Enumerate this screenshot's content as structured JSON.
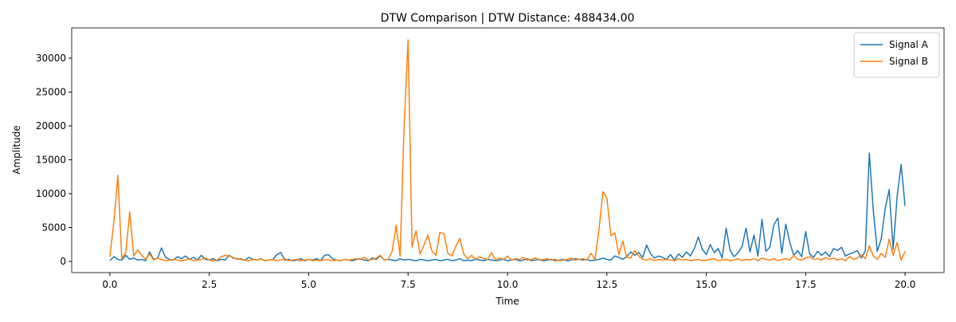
{
  "chart_data": {
    "type": "line",
    "title": "DTW Comparison | DTW Distance: 488434.00",
    "x_label": "Time",
    "y_label": "Amplitude",
    "x": [
      0,
      0.1,
      0.2,
      0.3,
      0.4,
      0.5,
      0.6,
      0.7,
      0.8,
      0.9,
      1,
      1.1,
      1.2,
      1.3,
      1.4,
      1.5,
      1.6,
      1.7,
      1.8,
      1.9,
      2,
      2.1,
      2.2,
      2.3,
      2.4,
      2.5,
      2.6,
      2.7,
      2.8,
      2.9,
      3,
      3.1,
      3.2,
      3.3,
      3.4,
      3.5,
      3.6,
      3.7,
      3.8,
      3.9,
      4,
      4.1,
      4.2,
      4.3,
      4.4,
      4.5,
      4.6,
      4.7,
      4.8,
      4.9,
      5,
      5.1,
      5.2,
      5.3,
      5.4,
      5.5,
      5.6,
      5.7,
      5.8,
      5.9,
      6,
      6.1,
      6.2,
      6.3,
      6.4,
      6.5,
      6.6,
      6.7,
      6.8,
      6.9,
      7,
      7.1,
      7.2,
      7.3,
      7.4,
      7.5,
      7.6,
      7.7,
      7.8,
      7.9,
      8,
      8.1,
      8.2,
      8.3,
      8.4,
      8.5,
      8.6,
      8.7,
      8.8,
      8.9,
      9,
      9.1,
      9.2,
      9.3,
      9.4,
      9.5,
      9.6,
      9.7,
      9.8,
      9.9,
      10,
      10.1,
      10.2,
      10.3,
      10.4,
      10.5,
      10.6,
      10.7,
      10.8,
      10.9,
      11,
      11.1,
      11.2,
      11.3,
      11.4,
      11.5,
      11.6,
      11.7,
      11.8,
      11.9,
      12,
      12.1,
      12.2,
      12.3,
      12.4,
      12.5,
      12.6,
      12.7,
      12.8,
      12.9,
      13,
      13.1,
      13.2,
      13.3,
      13.4,
      13.5,
      13.6,
      13.7,
      13.8,
      13.9,
      14,
      14.1,
      14.2,
      14.3,
      14.4,
      14.5,
      14.6,
      14.7,
      14.8,
      14.9,
      15,
      15.1,
      15.2,
      15.3,
      15.4,
      15.5,
      15.6,
      15.7,
      15.8,
      15.9,
      16,
      16.1,
      16.2,
      16.3,
      16.4,
      16.5,
      16.6,
      16.7,
      16.8,
      16.9,
      17,
      17.1,
      17.2,
      17.3,
      17.4,
      17.5,
      17.6,
      17.7,
      17.8,
      17.9,
      18,
      18.1,
      18.2,
      18.3,
      18.4,
      18.5,
      18.6,
      18.7,
      18.8,
      18.9,
      19,
      19.1,
      19.2,
      19.3,
      19.4,
      19.5,
      19.6,
      19.7,
      19.8,
      19.9,
      20
    ],
    "series": [
      {
        "name": "Signal A",
        "color": "#1f77b4",
        "values": [
          100,
          700,
          300,
          200,
          900,
          300,
          500,
          200,
          300,
          100,
          1400,
          300,
          500,
          2000,
          600,
          300,
          200,
          700,
          400,
          800,
          300,
          600,
          200,
          900,
          300,
          200,
          400,
          100,
          300,
          200,
          900,
          500,
          400,
          300,
          200,
          600,
          300,
          200,
          400,
          100,
          200,
          300,
          1000,
          1300,
          200,
          300,
          100,
          200,
          400,
          100,
          300,
          200,
          400,
          100,
          900,
          1000,
          400,
          200,
          100,
          300,
          200,
          100,
          300,
          400,
          200,
          100,
          500,
          300,
          800,
          200,
          300,
          200,
          100,
          400,
          200,
          300,
          200,
          100,
          300,
          200,
          100,
          200,
          300,
          100,
          200,
          300,
          100,
          200,
          400,
          100,
          200,
          100,
          300,
          200,
          100,
          300,
          200,
          100,
          200,
          300,
          100,
          200,
          300,
          100,
          200,
          400,
          100,
          200,
          300,
          100,
          200,
          300,
          100,
          200,
          300,
          100,
          200,
          400,
          300,
          200,
          300,
          100,
          200,
          300,
          500,
          300,
          200,
          800,
          600,
          300,
          700,
          1400,
          900,
          1300,
          600,
          2400,
          1100,
          500,
          800,
          600,
          300,
          1000,
          200,
          1100,
          600,
          1400,
          800,
          1900,
          3600,
          1800,
          1000,
          2500,
          1300,
          1900,
          500,
          4900,
          1600,
          700,
          1300,
          2200,
          4900,
          1400,
          3900,
          800,
          6200,
          1500,
          2100,
          5400,
          6400,
          1200,
          5500,
          2800,
          900,
          1600,
          700,
          4400,
          1100,
          600,
          1500,
          900,
          1400,
          700,
          1900,
          1600,
          2100,
          800,
          1100,
          1300,
          1600,
          500,
          1500,
          16000,
          7600,
          1500,
          3300,
          7800,
          10600,
          1800,
          9600,
          14300,
          8200
        ]
      },
      {
        "name": "Signal B",
        "color": "#ff7f0e",
        "values": [
          700,
          5800,
          12700,
          400,
          1300,
          7300,
          800,
          1700,
          900,
          300,
          1100,
          200,
          500,
          300,
          100,
          200,
          300,
          200,
          100,
          200,
          400,
          100,
          200,
          300,
          500,
          200,
          100,
          200,
          700,
          900,
          800,
          600,
          300,
          400,
          200,
          100,
          300,
          200,
          400,
          100,
          200,
          300,
          100,
          200,
          400,
          100,
          200,
          300,
          100,
          200,
          300,
          100,
          200,
          100,
          300,
          200,
          100,
          200,
          100,
          300,
          200,
          300,
          400,
          300,
          600,
          200,
          300,
          500,
          900,
          200,
          300,
          1500,
          5300,
          800,
          20000,
          32700,
          2100,
          4500,
          1100,
          2400,
          3900,
          1500,
          900,
          4300,
          4100,
          1200,
          800,
          2200,
          3400,
          1100,
          400,
          900,
          300,
          700,
          400,
          300,
          1300,
          200,
          500,
          300,
          800,
          200,
          400,
          300,
          600,
          200,
          300,
          500,
          200,
          300,
          400,
          200,
          300,
          100,
          200,
          300,
          500,
          200,
          300,
          400,
          200,
          1200,
          300,
          4600,
          10300,
          9400,
          3800,
          4200,
          1000,
          3000,
          600,
          500,
          1600,
          800,
          300,
          200,
          400,
          100,
          300,
          200,
          300,
          200,
          100,
          400,
          200,
          300,
          100,
          200,
          300,
          100,
          200,
          300,
          400,
          100,
          200,
          300,
          100,
          200,
          400,
          100,
          300,
          200,
          400,
          100,
          500,
          300,
          200,
          400,
          100,
          300,
          400,
          200,
          900,
          300,
          200,
          500,
          700,
          300,
          400,
          200,
          600,
          300,
          500,
          200,
          400,
          100,
          700,
          300,
          500,
          1000,
          400,
          2300,
          800,
          300,
          1200,
          600,
          3300,
          900,
          2800,
          200,
          1500
        ]
      }
    ],
    "xlim": [
      -0.96,
      20.98
    ],
    "ylim": [
      -1650,
      34470
    ],
    "xticks": [
      {
        "value": 0,
        "label": "0.0"
      },
      2.5,
      {
        "value": 5,
        "label": "5.0"
      },
      7.5,
      {
        "value": 10,
        "label": "10.0"
      },
      12.5,
      {
        "value": 15,
        "label": "15.0"
      },
      17.5,
      {
        "value": 20,
        "label": "20.0"
      }
    ],
    "yticks": [
      0,
      5000,
      10000,
      15000,
      20000,
      25000,
      30000
    ],
    "legend": "upper right"
  }
}
